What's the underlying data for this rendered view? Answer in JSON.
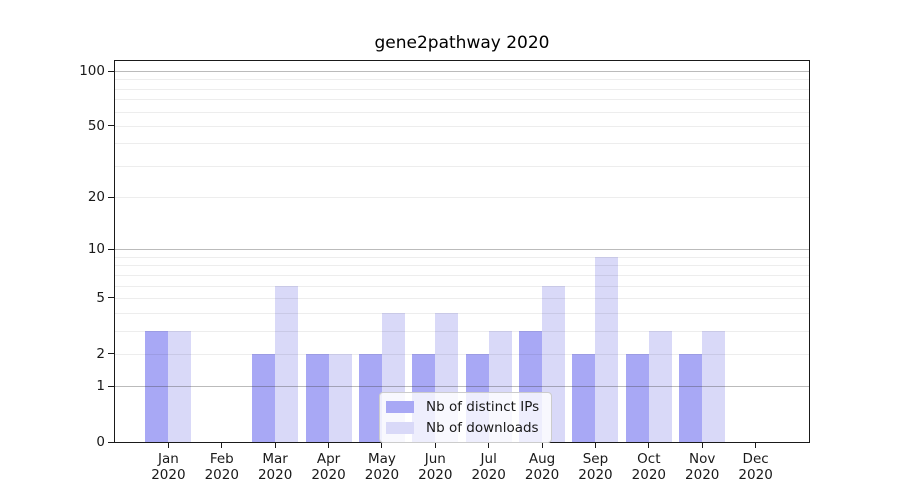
{
  "chart_data": {
    "type": "bar",
    "title": "gene2pathway 2020",
    "categories": [
      "Jan 2020",
      "Feb 2020",
      "Mar 2020",
      "Apr 2020",
      "May 2020",
      "Jun 2020",
      "Jul 2020",
      "Aug 2020",
      "Sep 2020",
      "Oct 2020",
      "Nov 2020",
      "Dec 2020"
    ],
    "series": [
      {
        "name": "Nb of distinct IPs",
        "color": "#a8a8f5",
        "values": [
          3,
          0,
          2,
          2,
          2,
          2,
          2,
          3,
          2,
          2,
          2,
          0
        ]
      },
      {
        "name": "Nb of downloads",
        "color": "#d9d9f8",
        "values": [
          3,
          0,
          6,
          2,
          4,
          4,
          3,
          6,
          9,
          3,
          3,
          0
        ]
      }
    ],
    "yticks": [
      0,
      1,
      2,
      5,
      10,
      20,
      50,
      100
    ],
    "major_gridlines": [
      1,
      10,
      100
    ],
    "minor_gridlines": [
      2,
      3,
      4,
      5,
      6,
      7,
      8,
      9,
      20,
      30,
      40,
      50,
      60,
      70,
      80,
      90
    ],
    "y_scale": "log10(value+1)",
    "ylim": [
      0,
      115
    ],
    "grid": true,
    "legend_position": "lower center",
    "axis_color": "#1a1a1a",
    "background_color": "#ffffff"
  }
}
